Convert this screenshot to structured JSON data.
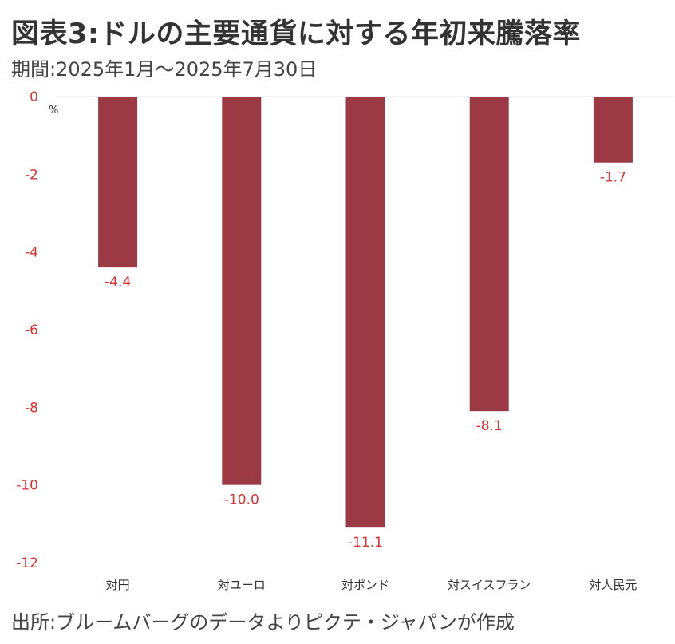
{
  "header": {
    "title": "図表3:ドルの主要通貨に対する年初来騰落率",
    "subtitle": "期間:2025年1月〜2025年7月30日"
  },
  "footer": {
    "source": "出所:ブルームバーグのデータよりピクテ・ジャパンが作成"
  },
  "chart_data": {
    "type": "bar",
    "categories": [
      "対円",
      "対ユーロ",
      "対ポンド",
      "対スイスフラン",
      "対人民元"
    ],
    "values": [
      -4.4,
      -10.0,
      -11.1,
      -8.1,
      -1.7
    ],
    "data_labels": [
      "-4.4",
      "-10.0",
      "-11.1",
      "-8.1",
      "-1.7"
    ],
    "ylim": [
      -12,
      0
    ],
    "yticks": [
      0,
      -2,
      -4,
      -6,
      -8,
      -10,
      -12
    ],
    "unit": "%",
    "grid": false,
    "colors": {
      "bar": "#9b3a44",
      "tick_text": "#e03030",
      "data_label_text": "#e03030",
      "category_text": "#333333"
    }
  }
}
